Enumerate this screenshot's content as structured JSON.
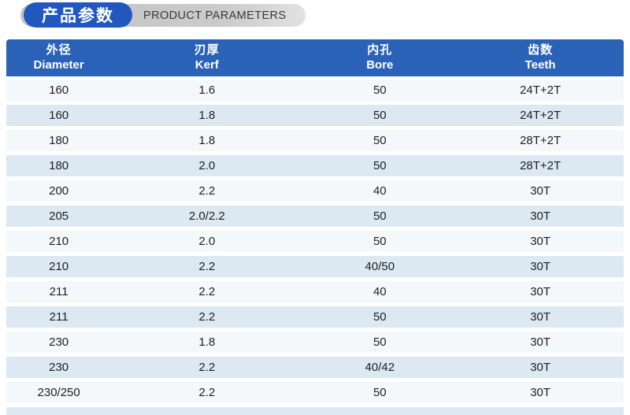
{
  "title": {
    "zh": "产品参数",
    "en": "PRODUCT PARAMETERS",
    "accent_blue": "#2257c0",
    "pill_gray": "#c9c9c9",
    "en_text_color": "#3a3a3a"
  },
  "table": {
    "header_bg": "#2a62b8",
    "header_text_color": "#ffffff",
    "row_light_bg": "#f5f8fb",
    "row_blue_bg": "#dce9f3",
    "columns": [
      {
        "zh": "外径",
        "en": "Diameter"
      },
      {
        "zh": "刃厚",
        "en": "Kerf"
      },
      {
        "zh": "内孔",
        "en": "Bore"
      },
      {
        "zh": "齿数",
        "en": "Teeth"
      }
    ],
    "rows": [
      [
        "160",
        "1.6",
        "50",
        "24T+2T"
      ],
      [
        "160",
        "1.8",
        "50",
        "24T+2T"
      ],
      [
        "180",
        "1.8",
        "50",
        "28T+2T"
      ],
      [
        "180",
        "2.0",
        "50",
        "28T+2T"
      ],
      [
        "200",
        "2.2",
        "40",
        "30T"
      ],
      [
        "205",
        "2.0/2.2",
        "50",
        "30T"
      ],
      [
        "210",
        "2.0",
        "50",
        "30T"
      ],
      [
        "210",
        "2.2",
        "40/50",
        "30T"
      ],
      [
        "211",
        "2.2",
        "40",
        "30T"
      ],
      [
        "211",
        "2.2",
        "50",
        "30T"
      ],
      [
        "230",
        "1.8",
        "50",
        "30T"
      ],
      [
        "230",
        "2.2",
        "40/42",
        "30T"
      ],
      [
        "230/250",
        "2.2",
        "50",
        "30T"
      ]
    ]
  }
}
